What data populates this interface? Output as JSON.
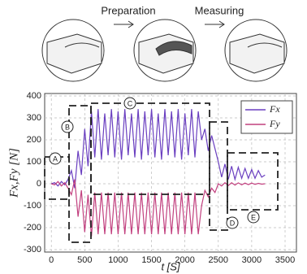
{
  "diagram": {
    "steps": [
      "Preparation",
      "Measuring"
    ]
  },
  "chart_data": {
    "type": "line",
    "xlabel": "t [S]",
    "ylabel": "Fx,Fy [N]",
    "xlim": [
      -100,
      3500
    ],
    "ylim": [
      -300,
      400
    ],
    "xticks": [
      0,
      500,
      1000,
      1500,
      2000,
      2500,
      3000,
      3500
    ],
    "yticks": [
      -300,
      -200,
      -100,
      0,
      100,
      200,
      300,
      400
    ],
    "grid": true,
    "legend": "top-right",
    "annotations": [
      "A",
      "B",
      "C",
      "D",
      "E"
    ],
    "x": [
      0,
      50,
      100,
      150,
      200,
      250,
      300,
      350,
      400,
      450,
      500,
      550,
      600,
      650,
      700,
      750,
      800,
      850,
      900,
      950,
      1000,
      1050,
      1100,
      1150,
      1200,
      1250,
      1300,
      1350,
      1400,
      1450,
      1500,
      1550,
      1600,
      1650,
      1700,
      1750,
      1800,
      1850,
      1900,
      1950,
      2000,
      2050,
      2100,
      2150,
      2200,
      2250,
      2300,
      2350,
      2400,
      2450,
      2500,
      2550,
      2600,
      2650,
      2700,
      2750,
      2800,
      2850,
      2900,
      2950,
      3000,
      3050,
      3100,
      3150,
      3200
    ],
    "series": [
      {
        "name": "Fx",
        "color": "#6a3fc0",
        "values": [
          0,
          5,
          -10,
          10,
          -5,
          20,
          60,
          -20,
          150,
          40,
          250,
          80,
          330,
          120,
          340,
          110,
          320,
          130,
          340,
          120,
          330,
          110,
          340,
          130,
          320,
          120,
          340,
          110,
          330,
          130,
          340,
          120,
          320,
          110,
          340,
          130,
          330,
          120,
          340,
          110,
          320,
          130,
          340,
          120,
          330,
          200,
          250,
          150,
          220,
          160,
          100,
          30,
          90,
          20,
          80,
          20,
          75,
          25,
          70,
          25,
          65,
          25,
          60,
          30,
          40
        ]
      },
      {
        "name": "Fy",
        "color": "#c2407f",
        "values": [
          0,
          -5,
          10,
          -10,
          5,
          -20,
          -50,
          20,
          -150,
          -30,
          -220,
          -50,
          -240,
          -40,
          -230,
          -40,
          -230,
          -40,
          -230,
          -40,
          -230,
          -40,
          -230,
          -40,
          -230,
          -40,
          -230,
          -40,
          -230,
          -40,
          -230,
          -40,
          -230,
          -40,
          -230,
          -40,
          -230,
          -40,
          -230,
          -40,
          -230,
          -40,
          -230,
          -40,
          -230,
          -100,
          -30,
          -60,
          -20,
          -40,
          0,
          -10,
          5,
          -8,
          5,
          -6,
          4,
          -5,
          3,
          -4,
          3,
          -3,
          2,
          -2,
          0
        ]
      }
    ]
  }
}
